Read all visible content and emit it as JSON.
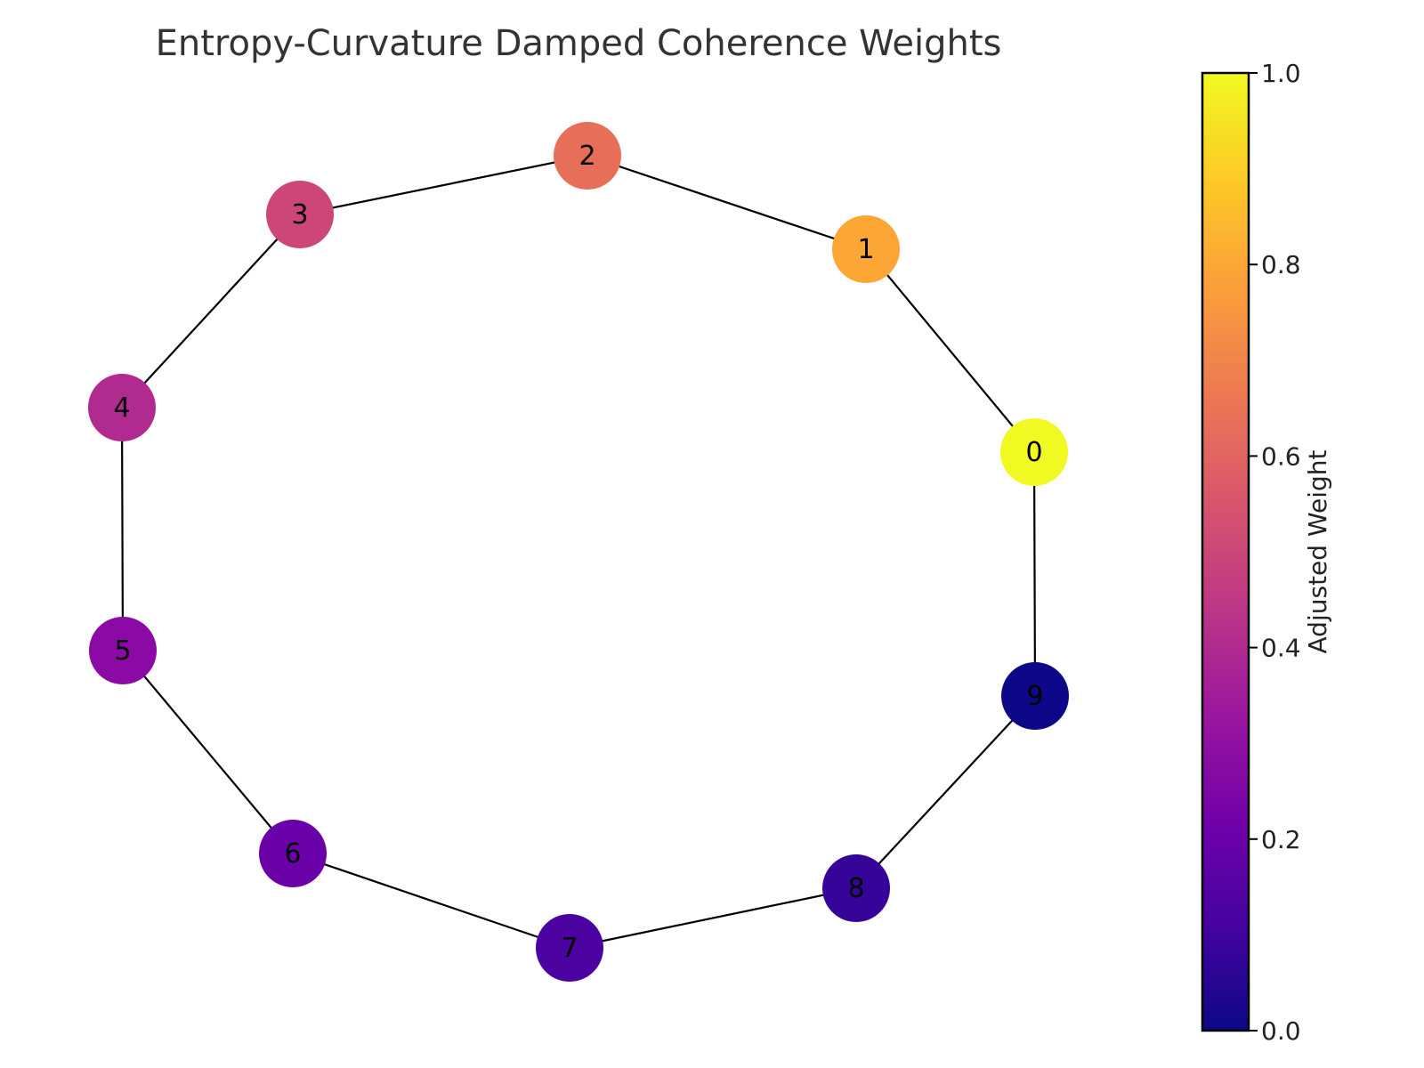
{
  "chart_data": {
    "type": "network",
    "title": "Entropy-Curvature Damped Coherence Weights",
    "nodes": [
      {
        "id": "0",
        "weight": 1.0,
        "color": "#f0f921"
      },
      {
        "id": "1",
        "weight": 0.8,
        "color": "#fca636"
      },
      {
        "id": "2",
        "weight": 0.65,
        "color": "#e76f5a"
      },
      {
        "id": "3",
        "weight": 0.5,
        "color": "#cc4778"
      },
      {
        "id": "4",
        "weight": 0.4,
        "color": "#b02a90"
      },
      {
        "id": "5",
        "weight": 0.28,
        "color": "#8b0aa5"
      },
      {
        "id": "6",
        "weight": 0.19,
        "color": "#6a00a8"
      },
      {
        "id": "7",
        "weight": 0.13,
        "color": "#4c02a1"
      },
      {
        "id": "8",
        "weight": 0.09,
        "color": "#360498"
      },
      {
        "id": "9",
        "weight": 0.0,
        "color": "#0d0887"
      }
    ],
    "edges": [
      [
        "0",
        "1"
      ],
      [
        "1",
        "2"
      ],
      [
        "2",
        "3"
      ],
      [
        "3",
        "4"
      ],
      [
        "4",
        "5"
      ],
      [
        "5",
        "6"
      ],
      [
        "6",
        "7"
      ],
      [
        "7",
        "8"
      ],
      [
        "8",
        "9"
      ],
      [
        "9",
        "0"
      ]
    ],
    "colorbar": {
      "label": "Adjusted Weight",
      "range": [
        0.0,
        1.0
      ],
      "ticks": [
        "0.0",
        "0.2",
        "0.4",
        "0.6",
        "0.8",
        "1.0"
      ],
      "colormap": "plasma",
      "stops": [
        "#0d0887",
        "#46039f",
        "#7201a8",
        "#9c179e",
        "#bd3786",
        "#d8576b",
        "#ed7953",
        "#fb9f3a",
        "#fdca26",
        "#f0f921"
      ]
    }
  }
}
